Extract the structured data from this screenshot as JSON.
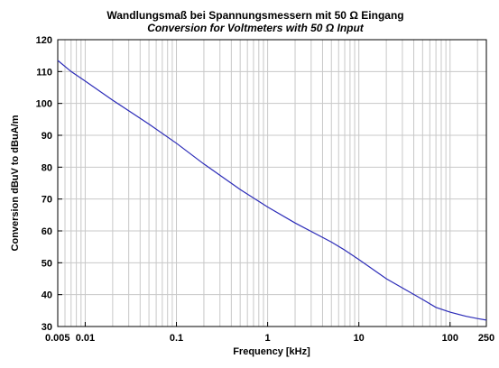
{
  "chart_data": {
    "type": "line",
    "title": "Wandlungsmaß bei Spannungsmessern mit 50 Ω Eingang",
    "subtitle": "Conversion for Voltmeters with 50 Ω Input",
    "xlabel": "Frequency [kHz]",
    "ylabel": "Conversion dBuV to dBuA/m",
    "xscale": "log",
    "xlim": [
      0.005,
      250
    ],
    "ylim": [
      30,
      120
    ],
    "grid": true,
    "x_tick_labels": [
      "0.005",
      "0.01",
      "0.1",
      "1",
      "10",
      "100",
      "250"
    ],
    "x_tick_values": [
      0.005,
      0.01,
      0.1,
      1,
      10,
      100,
      250
    ],
    "y_ticks": [
      30,
      40,
      50,
      60,
      70,
      80,
      90,
      100,
      110,
      120
    ],
    "line_color": "#2b2bb8",
    "series": [
      {
        "x": [
          0.005,
          0.007,
          0.01,
          0.02,
          0.05,
          0.1,
          0.2,
          0.5,
          1,
          2,
          5,
          7,
          10,
          20,
          50,
          70,
          100,
          150,
          200,
          250
        ],
        "y": [
          113.5,
          110,
          107,
          101,
          93.5,
          87.5,
          81,
          73,
          67.5,
          62.5,
          56.5,
          54,
          51,
          45,
          38.5,
          36,
          34.5,
          33.2,
          32.5,
          32
        ]
      }
    ]
  }
}
